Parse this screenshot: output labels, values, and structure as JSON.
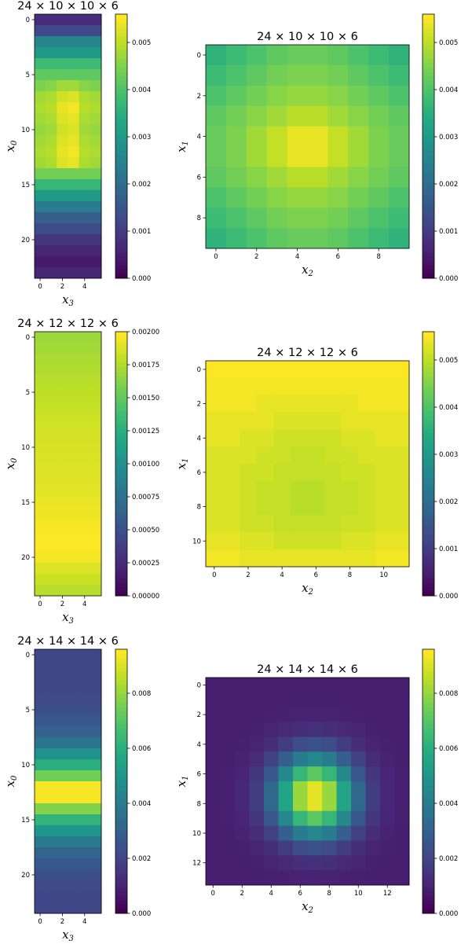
{
  "colormap": "viridis",
  "chart_data": [
    {
      "type": "heatmap",
      "title": "24 × 10 × 10 × 6",
      "rows": 24,
      "cols": 6,
      "xlabel": "x",
      "xlabel_sub": "3",
      "ylabel": "x",
      "ylabel_sub": "0",
      "xticks": [
        0,
        2,
        4
      ],
      "yticks": [
        0,
        5,
        10,
        15,
        20
      ],
      "colorbar": {
        "min": 0,
        "max": 0.0056,
        "ticks": [
          0,
          0.001,
          0.002,
          0.003,
          0.004,
          0.005
        ],
        "labels": [
          "0.000",
          "0.001",
          "0.002",
          "0.003",
          "0.004",
          "0.005"
        ]
      },
      "values": [
        [
          0.0007,
          0.0007,
          0.0007,
          0.0007,
          0.0007,
          0.0007
        ],
        [
          0.0012,
          0.0012,
          0.0012,
          0.0012,
          0.0012,
          0.0012
        ],
        [
          0.0025,
          0.0025,
          0.0025,
          0.0025,
          0.0025,
          0.0025
        ],
        [
          0.003,
          0.003,
          0.003,
          0.003,
          0.003,
          0.003
        ],
        [
          0.0038,
          0.0038,
          0.0038,
          0.0038,
          0.0038,
          0.0038
        ],
        [
          0.0042,
          0.0042,
          0.0042,
          0.0042,
          0.0042,
          0.0042
        ],
        [
          0.0045,
          0.0046,
          0.0048,
          0.0048,
          0.0046,
          0.0045
        ],
        [
          0.0048,
          0.0049,
          0.0052,
          0.0053,
          0.0049,
          0.0048
        ],
        [
          0.0049,
          0.005,
          0.0054,
          0.0055,
          0.005,
          0.0049
        ],
        [
          0.0048,
          0.0049,
          0.0053,
          0.0054,
          0.0049,
          0.0048
        ],
        [
          0.0047,
          0.0048,
          0.0052,
          0.0053,
          0.0048,
          0.0047
        ],
        [
          0.0048,
          0.0049,
          0.0053,
          0.0054,
          0.0049,
          0.0048
        ],
        [
          0.0049,
          0.005,
          0.0054,
          0.0055,
          0.005,
          0.0049
        ],
        [
          0.0048,
          0.0049,
          0.0053,
          0.0054,
          0.0049,
          0.0048
        ],
        [
          0.0044,
          0.0044,
          0.0044,
          0.0044,
          0.0044,
          0.0044
        ],
        [
          0.0037,
          0.0037,
          0.0037,
          0.0037,
          0.0037,
          0.0037
        ],
        [
          0.003,
          0.003,
          0.003,
          0.003,
          0.003,
          0.003
        ],
        [
          0.0023,
          0.0023,
          0.0023,
          0.0023,
          0.0023,
          0.0023
        ],
        [
          0.0017,
          0.0017,
          0.0017,
          0.0017,
          0.0017,
          0.0017
        ],
        [
          0.0013,
          0.0013,
          0.0013,
          0.0013,
          0.0013,
          0.0013
        ],
        [
          0.0009,
          0.0009,
          0.0009,
          0.0009,
          0.0009,
          0.0009
        ],
        [
          0.0006,
          0.0006,
          0.0006,
          0.0006,
          0.0006,
          0.0006
        ],
        [
          0.0004,
          0.0004,
          0.0004,
          0.0004,
          0.0004,
          0.0004
        ],
        [
          0.0006,
          0.0006,
          0.0006,
          0.0006,
          0.0006,
          0.0006
        ]
      ]
    },
    {
      "type": "heatmap",
      "title": "24 × 10 × 10 × 6",
      "rows": 10,
      "cols": 10,
      "xlabel": "x",
      "xlabel_sub": "2",
      "ylabel": "x",
      "ylabel_sub": "1",
      "xticks": [
        0,
        2,
        4,
        6,
        8
      ],
      "yticks": [
        0,
        2,
        4,
        6,
        8
      ],
      "colorbar": {
        "min": 0,
        "max": 0.0056,
        "ticks": [
          0,
          0.001,
          0.002,
          0.003,
          0.004,
          0.005
        ],
        "labels": [
          "0.000",
          "0.001",
          "0.002",
          "0.003",
          "0.004",
          "0.005"
        ]
      },
      "values": [
        [
          0.0036,
          0.0038,
          0.004,
          0.0042,
          0.0043,
          0.0043,
          0.0042,
          0.004,
          0.0038,
          0.0036
        ],
        [
          0.0038,
          0.004,
          0.0042,
          0.0044,
          0.0045,
          0.0045,
          0.0044,
          0.0042,
          0.004,
          0.0038
        ],
        [
          0.004,
          0.0042,
          0.0044,
          0.0046,
          0.0047,
          0.0047,
          0.0046,
          0.0044,
          0.0042,
          0.004
        ],
        [
          0.0042,
          0.0044,
          0.0046,
          0.0048,
          0.005,
          0.005,
          0.0048,
          0.0046,
          0.0044,
          0.0042
        ],
        [
          0.0043,
          0.0045,
          0.0048,
          0.0051,
          0.0054,
          0.0054,
          0.0051,
          0.0048,
          0.0045,
          0.0043
        ],
        [
          0.0043,
          0.0045,
          0.0048,
          0.0051,
          0.0054,
          0.0054,
          0.0051,
          0.0048,
          0.0045,
          0.0043
        ],
        [
          0.0042,
          0.0044,
          0.0046,
          0.0048,
          0.005,
          0.005,
          0.0048,
          0.0046,
          0.0044,
          0.0042
        ],
        [
          0.004,
          0.0042,
          0.0044,
          0.0046,
          0.0047,
          0.0047,
          0.0046,
          0.0044,
          0.0042,
          0.004
        ],
        [
          0.0038,
          0.004,
          0.0042,
          0.0044,
          0.0045,
          0.0045,
          0.0044,
          0.0042,
          0.004,
          0.0038
        ],
        [
          0.0036,
          0.0038,
          0.004,
          0.0042,
          0.0043,
          0.0043,
          0.0042,
          0.004,
          0.0038,
          0.0036
        ]
      ]
    },
    {
      "type": "heatmap",
      "title": "24 × 12 × 12 × 6",
      "rows": 24,
      "cols": 6,
      "xlabel": "x",
      "xlabel_sub": "3",
      "ylabel": "x",
      "ylabel_sub": "0",
      "xticks": [
        0,
        2,
        4
      ],
      "yticks": [
        0,
        5,
        10,
        15,
        20
      ],
      "colorbar": {
        "min": 0,
        "max": 0.002,
        "ticks": [
          0,
          0.00025,
          0.0005,
          0.00075,
          0.001,
          0.00125,
          0.0015,
          0.00175,
          0.002
        ],
        "labels": [
          "0.00000",
          "0.00025",
          "0.00050",
          "0.00075",
          "0.00100",
          "0.00125",
          "0.00150",
          "0.00175",
          "0.00200"
        ]
      },
      "values": [
        [
          0.0017,
          0.0017,
          0.0017,
          0.0017,
          0.0017,
          0.0017
        ],
        [
          0.00172,
          0.00172,
          0.00172,
          0.00172,
          0.00172,
          0.00172
        ],
        [
          0.00174,
          0.00174,
          0.00174,
          0.00174,
          0.00174,
          0.00174
        ],
        [
          0.00176,
          0.00176,
          0.00176,
          0.00176,
          0.00176,
          0.00176
        ],
        [
          0.00178,
          0.00178,
          0.00178,
          0.00178,
          0.00178,
          0.00178
        ],
        [
          0.0018,
          0.0018,
          0.0018,
          0.0018,
          0.0018,
          0.0018
        ],
        [
          0.00182,
          0.00182,
          0.00182,
          0.00182,
          0.00182,
          0.00182
        ],
        [
          0.00184,
          0.00184,
          0.00184,
          0.00184,
          0.00184,
          0.00184
        ],
        [
          0.00186,
          0.00186,
          0.00186,
          0.00186,
          0.00186,
          0.00186
        ],
        [
          0.00187,
          0.00187,
          0.00187,
          0.00187,
          0.00187,
          0.00187
        ],
        [
          0.00188,
          0.00188,
          0.00188,
          0.00188,
          0.00188,
          0.00188
        ],
        [
          0.00189,
          0.00189,
          0.00189,
          0.00189,
          0.00189,
          0.00189
        ],
        [
          0.0019,
          0.0019,
          0.0019,
          0.0019,
          0.0019,
          0.0019
        ],
        [
          0.00191,
          0.00191,
          0.00191,
          0.00191,
          0.00191,
          0.00191
        ],
        [
          0.00192,
          0.00192,
          0.00192,
          0.00192,
          0.00192,
          0.00192
        ],
        [
          0.00194,
          0.00194,
          0.00194,
          0.00194,
          0.00194,
          0.00194
        ],
        [
          0.00196,
          0.00196,
          0.00196,
          0.00196,
          0.00196,
          0.00196
        ],
        [
          0.00198,
          0.00198,
          0.00198,
          0.00198,
          0.00198,
          0.00198
        ],
        [
          0.00199,
          0.00199,
          0.00199,
          0.00199,
          0.00199,
          0.00199
        ],
        [
          0.002,
          0.002,
          0.002,
          0.002,
          0.002,
          0.002
        ],
        [
          0.00197,
          0.00197,
          0.00197,
          0.00197,
          0.00197,
          0.00197
        ],
        [
          0.0019,
          0.0019,
          0.0019,
          0.0019,
          0.0019,
          0.0019
        ],
        [
          0.00184,
          0.00184,
          0.00184,
          0.00184,
          0.00184,
          0.00184
        ],
        [
          0.00178,
          0.00178,
          0.00178,
          0.00178,
          0.00178,
          0.00178
        ]
      ]
    },
    {
      "type": "heatmap",
      "title": "24 × 12 × 12 × 6",
      "rows": 12,
      "cols": 12,
      "xlabel": "x",
      "xlabel_sub": "2",
      "ylabel": "x",
      "ylabel_sub": "1",
      "xticks": [
        0,
        2,
        4,
        6,
        8,
        10
      ],
      "yticks": [
        0,
        2,
        4,
        6,
        8,
        10
      ],
      "colorbar": {
        "min": 0,
        "max": 0.0056,
        "ticks": [
          0,
          0.001,
          0.002,
          0.003,
          0.004,
          0.005
        ],
        "labels": [
          "0.000",
          "0.001",
          "0.002",
          "0.003",
          "0.004",
          "0.005"
        ]
      },
      "values": [
        [
          0.0056,
          0.0056,
          0.0056,
          0.0056,
          0.0056,
          0.0056,
          0.0056,
          0.0056,
          0.0056,
          0.0056,
          0.0056,
          0.0056
        ],
        [
          0.0055,
          0.0055,
          0.0055,
          0.0055,
          0.0055,
          0.0055,
          0.0055,
          0.0055,
          0.0055,
          0.0055,
          0.0055,
          0.0055
        ],
        [
          0.0055,
          0.0055,
          0.0055,
          0.0054,
          0.0054,
          0.0054,
          0.0054,
          0.0054,
          0.0054,
          0.0055,
          0.0055,
          0.0055
        ],
        [
          0.0054,
          0.0054,
          0.0054,
          0.0054,
          0.0053,
          0.0053,
          0.0053,
          0.0053,
          0.0054,
          0.0054,
          0.0054,
          0.0054
        ],
        [
          0.0054,
          0.0054,
          0.0053,
          0.0053,
          0.0052,
          0.0052,
          0.0052,
          0.0052,
          0.0053,
          0.0053,
          0.0054,
          0.0054
        ],
        [
          0.0053,
          0.0053,
          0.0053,
          0.0052,
          0.0052,
          0.0051,
          0.0051,
          0.0052,
          0.0052,
          0.0053,
          0.0053,
          0.0053
        ],
        [
          0.0053,
          0.0053,
          0.0052,
          0.0052,
          0.0051,
          0.0051,
          0.0051,
          0.0051,
          0.0052,
          0.0052,
          0.0053,
          0.0053
        ],
        [
          0.0053,
          0.0053,
          0.0052,
          0.0051,
          0.0051,
          0.005,
          0.005,
          0.0051,
          0.0051,
          0.0052,
          0.0053,
          0.0053
        ],
        [
          0.0053,
          0.0053,
          0.0052,
          0.0051,
          0.0051,
          0.005,
          0.005,
          0.0051,
          0.0051,
          0.0052,
          0.0053,
          0.0053
        ],
        [
          0.0053,
          0.0053,
          0.0052,
          0.0052,
          0.0051,
          0.0051,
          0.0051,
          0.0051,
          0.0052,
          0.0052,
          0.0053,
          0.0053
        ],
        [
          0.0054,
          0.0054,
          0.0053,
          0.0053,
          0.0052,
          0.0052,
          0.0052,
          0.0052,
          0.0053,
          0.0053,
          0.0054,
          0.0054
        ],
        [
          0.0055,
          0.0055,
          0.0054,
          0.0054,
          0.0054,
          0.0054,
          0.0054,
          0.0054,
          0.0054,
          0.0054,
          0.0055,
          0.0055
        ]
      ]
    },
    {
      "type": "heatmap",
      "title": "24 × 14 × 14 × 6",
      "rows": 24,
      "cols": 6,
      "xlabel": "x",
      "xlabel_sub": "3",
      "ylabel": "x",
      "ylabel_sub": "0",
      "xticks": [
        0,
        2,
        4
      ],
      "yticks": [
        0,
        5,
        10,
        15,
        20
      ],
      "colorbar": {
        "min": 0,
        "max": 0.0096,
        "ticks": [
          0,
          0.002,
          0.004,
          0.006,
          0.008
        ],
        "labels": [
          "0.000",
          "0.002",
          "0.004",
          "0.006",
          "0.008"
        ]
      },
      "values": [
        [
          0.002,
          0.002,
          0.002,
          0.002,
          0.002,
          0.002
        ],
        [
          0.002,
          0.002,
          0.002,
          0.002,
          0.002,
          0.002
        ],
        [
          0.002,
          0.002,
          0.002,
          0.002,
          0.002,
          0.002
        ],
        [
          0.002,
          0.002,
          0.002,
          0.002,
          0.002,
          0.002
        ],
        [
          0.0021,
          0.0021,
          0.0021,
          0.0021,
          0.0021,
          0.0021
        ],
        [
          0.0023,
          0.0023,
          0.0023,
          0.0023,
          0.0023,
          0.0023
        ],
        [
          0.0026,
          0.0026,
          0.0026,
          0.0026,
          0.0026,
          0.0026
        ],
        [
          0.003,
          0.003,
          0.003,
          0.003,
          0.003,
          0.003
        ],
        [
          0.0037,
          0.0037,
          0.0037,
          0.0037,
          0.0037,
          0.0037
        ],
        [
          0.0048,
          0.0048,
          0.0048,
          0.0048,
          0.0048,
          0.0048
        ],
        [
          0.006,
          0.006,
          0.006,
          0.006,
          0.006,
          0.006
        ],
        [
          0.0075,
          0.0075,
          0.0075,
          0.0075,
          0.0075,
          0.0075
        ],
        [
          0.0095,
          0.0095,
          0.0095,
          0.0095,
          0.0095,
          0.0095
        ],
        [
          0.0095,
          0.0095,
          0.0095,
          0.0095,
          0.0095,
          0.0095
        ],
        [
          0.0078,
          0.0078,
          0.0078,
          0.0078,
          0.0078,
          0.0078
        ],
        [
          0.0062,
          0.0062,
          0.0062,
          0.0062,
          0.0062,
          0.0062
        ],
        [
          0.005,
          0.005,
          0.005,
          0.005,
          0.005,
          0.005
        ],
        [
          0.0039,
          0.0039,
          0.0039,
          0.0039,
          0.0039,
          0.0039
        ],
        [
          0.0031,
          0.0031,
          0.0031,
          0.0031,
          0.0031,
          0.0031
        ],
        [
          0.0026,
          0.0026,
          0.0026,
          0.0026,
          0.0026,
          0.0026
        ],
        [
          0.0023,
          0.0023,
          0.0023,
          0.0023,
          0.0023,
          0.0023
        ],
        [
          0.0021,
          0.0021,
          0.0021,
          0.0021,
          0.0021,
          0.0021
        ],
        [
          0.002,
          0.002,
          0.002,
          0.002,
          0.002,
          0.002
        ],
        [
          0.002,
          0.002,
          0.002,
          0.002,
          0.002,
          0.002
        ]
      ]
    },
    {
      "type": "heatmap",
      "title": "24 × 14 × 14 × 6",
      "rows": 14,
      "cols": 14,
      "xlabel": "x",
      "xlabel_sub": "2",
      "ylabel": "x",
      "ylabel_sub": "1",
      "xticks": [
        0,
        2,
        4,
        6,
        8,
        10,
        12
      ],
      "yticks": [
        0,
        2,
        4,
        6,
        8,
        10,
        12
      ],
      "colorbar": {
        "min": 0,
        "max": 0.0096,
        "ticks": [
          0,
          0.002,
          0.004,
          0.006,
          0.008
        ],
        "labels": [
          "0.000",
          "0.002",
          "0.004",
          "0.006",
          "0.008"
        ]
      },
      "gaussian": {
        "peak": 0.0095,
        "base": 0.0008,
        "center_row": 7.5,
        "center_col": 7.0,
        "sigma": 1.9
      }
    }
  ]
}
